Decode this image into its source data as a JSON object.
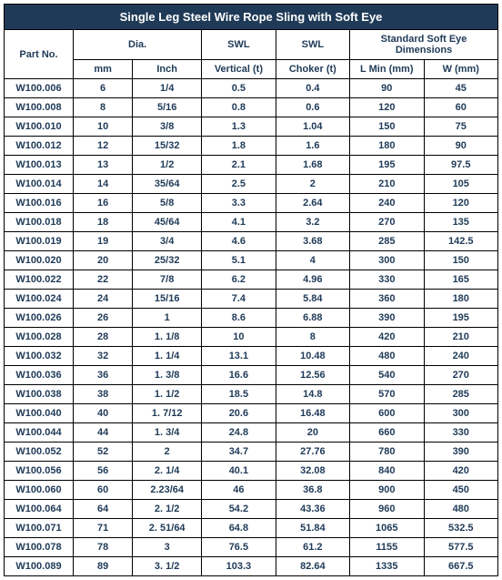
{
  "title": "Single Leg Steel Wire Rope Sling with Soft Eye",
  "header": {
    "partNo": "Part No.",
    "dia": "Dia.",
    "swl1": "SWL",
    "swl2": "SWL",
    "softEye": "Standard Soft Eye Dimensions",
    "mm": "mm",
    "inch": "Inch",
    "vertical": "Vertical (t)",
    "choker": "Choker (t)",
    "lmin": "L Min (mm)",
    "w": "W (mm)"
  },
  "colors": {
    "titleBg": "#1f3a57",
    "titleText": "#ffffff",
    "cellText": "#1f3a57",
    "border": "#000000",
    "bg": "#ffffff"
  },
  "rows": [
    {
      "pn": "W100.006",
      "mm": "6",
      "in": "1/4",
      "v": "0.5",
      "c": "0.4",
      "l": "90",
      "w": "45"
    },
    {
      "pn": "W100.008",
      "mm": "8",
      "in": "5/16",
      "v": "0.8",
      "c": "0.6",
      "l": "120",
      "w": "60"
    },
    {
      "pn": "W100.010",
      "mm": "10",
      "in": "3/8",
      "v": "1.3",
      "c": "1.04",
      "l": "150",
      "w": "75"
    },
    {
      "pn": "W100.012",
      "mm": "12",
      "in": "15/32",
      "v": "1.8",
      "c": "1.6",
      "l": "180",
      "w": "90"
    },
    {
      "pn": "W100.013",
      "mm": "13",
      "in": "1/2",
      "v": "2.1",
      "c": "1.68",
      "l": "195",
      "w": "97.5"
    },
    {
      "pn": "W100.014",
      "mm": "14",
      "in": "35/64",
      "v": "2.5",
      "c": "2",
      "l": "210",
      "w": "105"
    },
    {
      "pn": "W100.016",
      "mm": "16",
      "in": "5/8",
      "v": "3.3",
      "c": "2.64",
      "l": "240",
      "w": "120"
    },
    {
      "pn": "W100.018",
      "mm": "18",
      "in": "45/64",
      "v": "4.1",
      "c": "3.2",
      "l": "270",
      "w": "135"
    },
    {
      "pn": "W100.019",
      "mm": "19",
      "in": "3/4",
      "v": "4.6",
      "c": "3.68",
      "l": "285",
      "w": "142.5"
    },
    {
      "pn": "W100.020",
      "mm": "20",
      "in": "25/32",
      "v": "5.1",
      "c": "4",
      "l": "300",
      "w": "150"
    },
    {
      "pn": "W100.022",
      "mm": "22",
      "in": "7/8",
      "v": "6.2",
      "c": "4.96",
      "l": "330",
      "w": "165"
    },
    {
      "pn": "W100.024",
      "mm": "24",
      "in": "15/16",
      "v": "7.4",
      "c": "5.84",
      "l": "360",
      "w": "180"
    },
    {
      "pn": "W100.026",
      "mm": "26",
      "in": "1",
      "v": "8.6",
      "c": "6.88",
      "l": "390",
      "w": "195"
    },
    {
      "pn": "W100.028",
      "mm": "28",
      "in": "1. 1/8",
      "v": "10",
      "c": "8",
      "l": "420",
      "w": "210"
    },
    {
      "pn": "W100.032",
      "mm": "32",
      "in": "1. 1/4",
      "v": "13.1",
      "c": "10.48",
      "l": "480",
      "w": "240"
    },
    {
      "pn": "W100.036",
      "mm": "36",
      "in": "1. 3/8",
      "v": "16.6",
      "c": "12.56",
      "l": "540",
      "w": "270"
    },
    {
      "pn": "W100.038",
      "mm": "38",
      "in": "1. 1/2",
      "v": "18.5",
      "c": "14.8",
      "l": "570",
      "w": "285"
    },
    {
      "pn": "W100.040",
      "mm": "40",
      "in": "1. 7/12",
      "v": "20.6",
      "c": "16.48",
      "l": "600",
      "w": "300"
    },
    {
      "pn": "W100.044",
      "mm": "44",
      "in": "1. 3/4",
      "v": "24.8",
      "c": "20",
      "l": "660",
      "w": "330"
    },
    {
      "pn": "W100.052",
      "mm": "52",
      "in": "2",
      "v": "34.7",
      "c": "27.76",
      "l": "780",
      "w": "390"
    },
    {
      "pn": "W100.056",
      "mm": "56",
      "in": "2. 1/4",
      "v": "40.1",
      "c": "32.08",
      "l": "840",
      "w": "420"
    },
    {
      "pn": "W100.060",
      "mm": "60",
      "in": "2.23/64",
      "v": "46",
      "c": "36.8",
      "l": "900",
      "w": "450"
    },
    {
      "pn": "W100.064",
      "mm": "64",
      "in": "2. 1/2",
      "v": "54.2",
      "c": "43.36",
      "l": "960",
      "w": "480"
    },
    {
      "pn": "W100.071",
      "mm": "71",
      "in": "2. 51/64",
      "v": "64.8",
      "c": "51.84",
      "l": "1065",
      "w": "532.5"
    },
    {
      "pn": "W100.078",
      "mm": "78",
      "in": "3",
      "v": "76.5",
      "c": "61.2",
      "l": "1155",
      "w": "577.5"
    },
    {
      "pn": "W100.089",
      "mm": "89",
      "in": "3. 1/2",
      "v": "103.3",
      "c": "82.64",
      "l": "1335",
      "w": "667.5"
    }
  ]
}
